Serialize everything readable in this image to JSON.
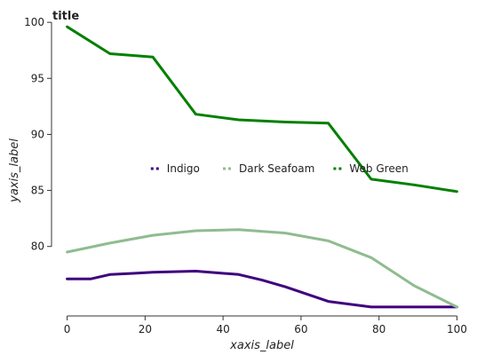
{
  "chart_data": {
    "type": "line",
    "title": "title",
    "xlabel": "xaxis_label",
    "ylabel": "yaxis_label",
    "xlim": [
      -4,
      104
    ],
    "ylim": [
      73.8,
      101.2
    ],
    "xticks": [
      0,
      20,
      40,
      60,
      80,
      100
    ],
    "yticks": [
      80,
      85,
      90,
      95,
      100
    ],
    "grid": false,
    "legend": {
      "position": "center",
      "entries": [
        "Indigo",
        "Dark Seafoam",
        "Web Green"
      ]
    },
    "series": [
      {
        "name": "Indigo",
        "color": "#3f007d",
        "x": [
          0,
          6,
          11,
          17,
          22,
          33,
          44,
          50,
          56,
          67,
          78,
          89,
          100
        ],
        "y": [
          77.1,
          77.1,
          77.5,
          77.6,
          77.7,
          77.8,
          77.5,
          77.0,
          76.4,
          75.1,
          74.6,
          74.6,
          74.6
        ]
      },
      {
        "name": "Dark Seafoam",
        "color": "#8fbc8f",
        "x": [
          0,
          11,
          22,
          33,
          44,
          56,
          67,
          78,
          89,
          100
        ],
        "y": [
          79.5,
          80.3,
          81.0,
          81.4,
          81.5,
          81.2,
          80.5,
          79.0,
          76.5,
          74.6
        ]
      },
      {
        "name": "Web Green",
        "color": "#008000",
        "x": [
          0,
          11,
          22,
          33,
          44,
          56,
          67,
          78,
          89,
          100
        ],
        "y": [
          99.6,
          97.2,
          96.9,
          91.8,
          91.3,
          91.1,
          91.0,
          86.0,
          85.5,
          84.9
        ]
      }
    ]
  }
}
